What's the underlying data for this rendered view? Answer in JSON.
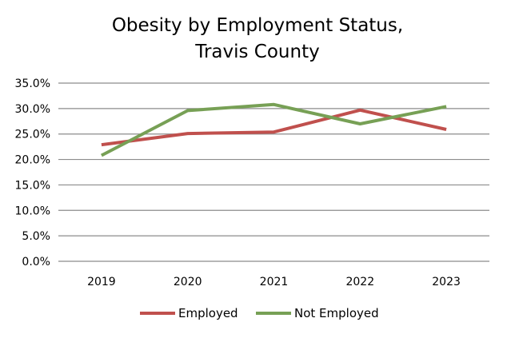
{
  "chart_data": {
    "type": "line",
    "title": [
      "Obesity by Employment Status,",
      "Travis County"
    ],
    "xlabel": "",
    "ylabel": "",
    "x": [
      "2019",
      "2020",
      "2021",
      "2022",
      "2023"
    ],
    "ylim": [
      0,
      35
    ],
    "yticks": [
      0,
      5,
      10,
      15,
      20,
      25,
      30,
      35
    ],
    "ytick_labels": [
      "0.0%",
      "5.0%",
      "10.0%",
      "15.0%",
      "20.0%",
      "25.0%",
      "30.0%",
      "35.0%"
    ],
    "grid": "horizontal",
    "legend_position": "bottom-center",
    "series": [
      {
        "name": "Employed",
        "color": "#C0504D",
        "values": [
          22.9,
          25.1,
          25.4,
          29.7,
          25.9
        ]
      },
      {
        "name": "Not Employed",
        "color": "#77A055",
        "values": [
          20.8,
          29.6,
          30.8,
          27.0,
          30.4
        ]
      }
    ]
  }
}
